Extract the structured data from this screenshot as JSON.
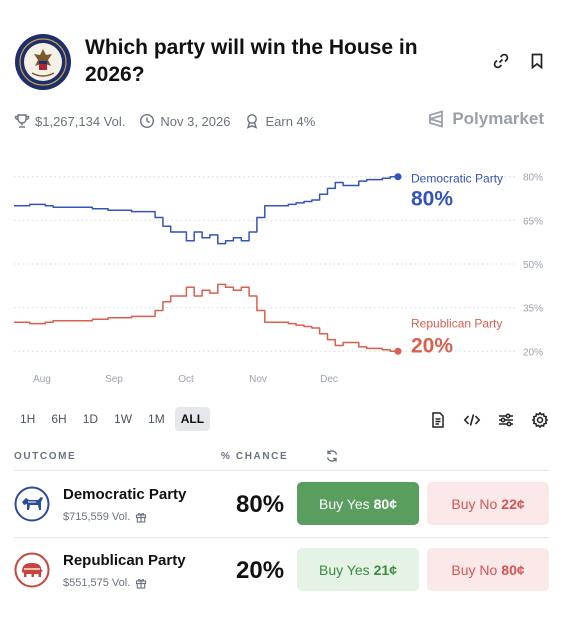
{
  "market": {
    "title": "Which party will win the House in 2026?",
    "volume": "$1,267,134 Vol.",
    "end_date": "Nov 3, 2026",
    "earn": "Earn 4%",
    "brand": "Polymarket",
    "seal_text": "U.S. HOUSE OF REPRESENTATIVES"
  },
  "colors": {
    "democratic": "#3354b8",
    "republican": "#d9604f",
    "yes_green": "#5a9e5f",
    "no_red": "#d35454"
  },
  "chart_data": {
    "type": "line",
    "x_ticks": [
      "Aug",
      "Sep",
      "Oct",
      "Nov",
      "Dec"
    ],
    "y_ticks": [
      "80%",
      "65%",
      "50%",
      "35%",
      "20%"
    ],
    "ylim": [
      17,
      83
    ],
    "series": [
      {
        "name": "Democratic Party",
        "end_label": "80%",
        "values": [
          70,
          70,
          70.5,
          70.5,
          70,
          69.5,
          69.5,
          69.5,
          69.5,
          69.5,
          69,
          69,
          68.5,
          68.5,
          68.5,
          68,
          68,
          68,
          66,
          63,
          61,
          61,
          58,
          61,
          59,
          60,
          57,
          58,
          59,
          58,
          61,
          66,
          70,
          70,
          70,
          70.5,
          71,
          71.5,
          72,
          74,
          76,
          78,
          77,
          77,
          78.5,
          79,
          79,
          79.5,
          80,
          80
        ]
      },
      {
        "name": "Republican Party",
        "end_label": "20%",
        "values": [
          30,
          30,
          29.5,
          29.5,
          30,
          30.5,
          30.5,
          30.5,
          30.5,
          30.5,
          31,
          31,
          31.5,
          31.5,
          31.5,
          32,
          32,
          32,
          34,
          37,
          39,
          39,
          42,
          39,
          41,
          40,
          43,
          42,
          41,
          42,
          39,
          34,
          30,
          30,
          30,
          29.5,
          29,
          28.5,
          28,
          26,
          24,
          22,
          23,
          23,
          21.5,
          21,
          21,
          20.5,
          20,
          20
        ]
      }
    ]
  },
  "range_tabs": [
    "1H",
    "6H",
    "1D",
    "1W",
    "1M",
    "ALL"
  ],
  "range_active": "ALL",
  "table": {
    "headers": {
      "outcome": "OUTCOME",
      "chance": "% CHANCE"
    },
    "rows": [
      {
        "name": "Democratic Party",
        "volume": "$715,559 Vol.",
        "chance": "80%",
        "yes_label": "Buy Yes",
        "yes_price": "80¢",
        "no_label": "Buy No",
        "no_price": "22¢",
        "icon": "democrat-donkey-icon"
      },
      {
        "name": "Republican Party",
        "volume": "$551,575 Vol.",
        "chance": "20%",
        "yes_label": "Buy Yes",
        "yes_price": "21¢",
        "no_label": "Buy No",
        "no_price": "80¢",
        "icon": "republican-elephant-icon"
      }
    ]
  }
}
